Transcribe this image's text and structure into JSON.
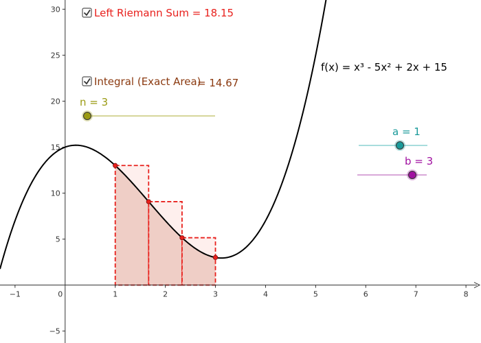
{
  "checkboxes": {
    "riemann": {
      "label": "Left Riemann Sum = 18.15",
      "checked": true,
      "color": "#e8201c"
    },
    "integral": {
      "label": "Integral (Exact Area)",
      "value_text": "= 14.67",
      "checked": true,
      "color": "#8b3a10"
    }
  },
  "function_label": "f(x) = x³ - 5x² + 2x + 15",
  "sliders": {
    "n": {
      "label": "n = 3",
      "value": 3,
      "min": 1,
      "max": 50,
      "color": "#9a9a12",
      "track_color": "#c8c878"
    },
    "a": {
      "label": "a = 1",
      "value": 1,
      "min": -5,
      "max": 5,
      "color": "#1a9a9a",
      "track_color": "#8cd2d2"
    },
    "b": {
      "label": "b = 3",
      "value": 3,
      "min": -5,
      "max": 5,
      "color": "#a010a0",
      "track_color": "#cc8ccc"
    }
  },
  "colors": {
    "curve": "#000000",
    "rect_fill": "#fde1df",
    "rect_stroke": "#e8201c",
    "area_fill": "#d8a899",
    "points": "#e8201c",
    "axis": "#333333",
    "grid_label": "#333333"
  },
  "chart_data": {
    "type": "line",
    "function": {
      "a3": 1,
      "a2": -5,
      "a1": 2,
      "a0": 15
    },
    "xlim": [
      -1.3,
      8.3
    ],
    "ylim": [
      -6.3,
      31
    ],
    "xticks": [
      {
        "v": -1,
        "label": "−1"
      },
      {
        "v": 0,
        "label": "0"
      },
      {
        "v": 1,
        "label": "1"
      },
      {
        "v": 2,
        "label": "2"
      },
      {
        "v": 3,
        "label": "3"
      },
      {
        "v": 4,
        "label": "4"
      },
      {
        "v": 5,
        "label": "5"
      },
      {
        "v": 6,
        "label": "6"
      },
      {
        "v": 7,
        "label": "7"
      },
      {
        "v": 8,
        "label": "8"
      }
    ],
    "yticks": [
      {
        "v": -5,
        "label": "−5"
      },
      {
        "v": 5,
        "label": "5"
      },
      {
        "v": 10,
        "label": "10"
      },
      {
        "v": 15,
        "label": "15"
      },
      {
        "v": 20,
        "label": "20"
      },
      {
        "v": 25,
        "label": "25"
      },
      {
        "v": 30,
        "label": "30"
      }
    ],
    "a": 1,
    "b": 3,
    "n": 3
  }
}
